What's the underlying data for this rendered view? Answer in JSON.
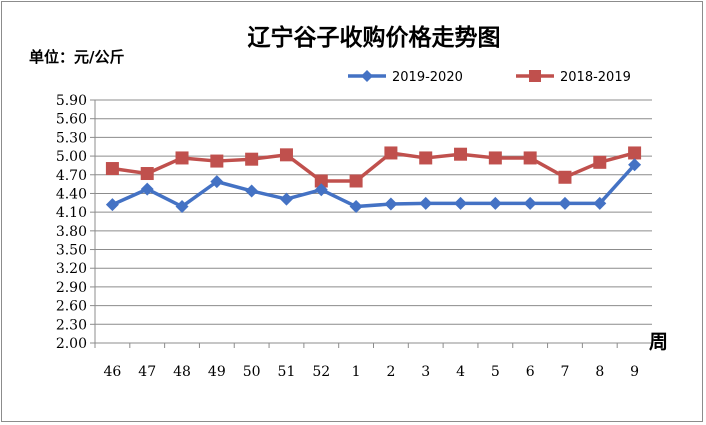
{
  "chart_data": {
    "type": "line",
    "title": "辽宁谷子收购价格走势图",
    "unit_label": "单位：元/公斤",
    "xlabel": "周",
    "ylabel": "",
    "categories": [
      "46",
      "47",
      "48",
      "49",
      "50",
      "51",
      "52",
      "1",
      "2",
      "3",
      "4",
      "5",
      "6",
      "7",
      "8",
      "9"
    ],
    "y_ticks": [
      "2.00",
      "2.30",
      "2.60",
      "2.90",
      "3.20",
      "3.50",
      "3.80",
      "4.10",
      "4.40",
      "4.70",
      "5.00",
      "5.30",
      "5.60",
      "5.90"
    ],
    "ylim": [
      2.0,
      5.9
    ],
    "grid": true,
    "legend_position": "top-right",
    "series": [
      {
        "name": "2019-2020",
        "color": "#4472c4",
        "marker": "diamond",
        "values": [
          4.22,
          4.47,
          4.19,
          4.59,
          4.44,
          4.31,
          4.46,
          4.19,
          4.23,
          4.24,
          4.24,
          4.24,
          4.24,
          4.24,
          4.24,
          4.86
        ]
      },
      {
        "name": "2018-2019",
        "color": "#c0504d",
        "marker": "square",
        "values": [
          4.8,
          4.72,
          4.97,
          4.92,
          4.95,
          5.02,
          4.6,
          4.6,
          5.05,
          4.97,
          5.03,
          4.97,
          4.97,
          4.66,
          4.9,
          5.05
        ]
      }
    ]
  }
}
